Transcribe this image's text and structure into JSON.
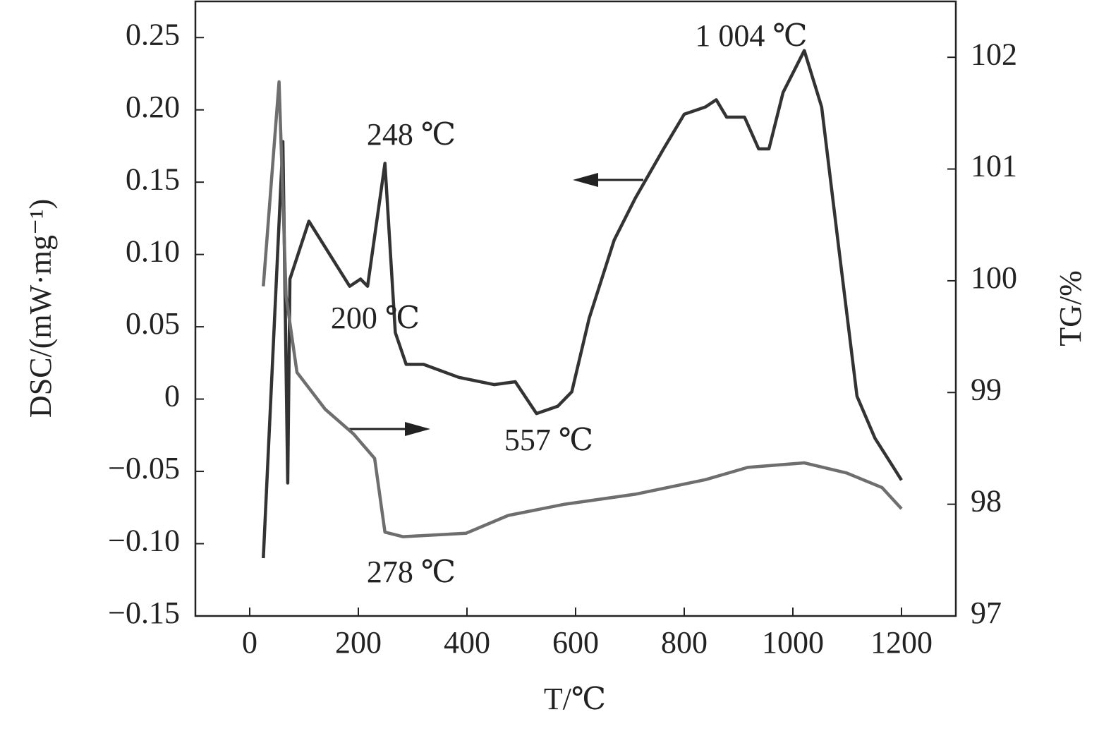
{
  "chart_data": {
    "type": "line",
    "xlabel": "T/℃",
    "ylabel": "DSC/(mW·mg⁻¹)",
    "y2label": "TG/%",
    "annotations": [
      "1 004 ℃",
      "248 ℃",
      "200 ℃",
      "557 ℃",
      "278 ℃"
    ],
    "xlim": [
      -100,
      1300
    ],
    "xticks": [
      0,
      200,
      400,
      600,
      800,
      1000,
      1200
    ],
    "ylim": [
      -0.15,
      0.275
    ],
    "yticks": [
      {
        "value": -0.15,
        "label": "−0.15"
      },
      {
        "value": -0.1,
        "label": "−0.10"
      },
      {
        "value": -0.05,
        "label": "−0.05"
      },
      0,
      0.05,
      {
        "value": 0.1,
        "label": "0.10"
      },
      0.15,
      {
        "value": 0.2,
        "label": "0.20"
      },
      0.25
    ],
    "y2lim": [
      97,
      102.5
    ],
    "y2ticks": [
      97,
      98,
      99,
      100,
      101,
      102
    ],
    "series": [
      {
        "name": "DSC",
        "color": "#333333",
        "x": [
          25,
          61,
          70,
          74,
          109,
          184,
          204,
          217,
          249,
          268,
          288,
          320,
          385,
          450,
          489,
          528,
          567,
          593,
          625,
          671,
          710,
          762,
          800,
          839,
          859,
          878,
          911,
          937,
          956,
          982,
          1021,
          1053,
          1086,
          1118,
          1151,
          1200
        ],
        "values": [
          -0.11,
          0.178,
          -0.058,
          0.083,
          0.123,
          0.078,
          0.083,
          0.078,
          0.163,
          0.046,
          0.024,
          0.024,
          0.015,
          0.01,
          0.012,
          -0.01,
          -0.005,
          0.005,
          0.056,
          0.11,
          0.139,
          0.173,
          0.197,
          0.202,
          0.207,
          0.195,
          0.195,
          0.173,
          0.173,
          0.212,
          0.241,
          0.202,
          0.1,
          0.002,
          -0.027,
          -0.056
        ]
      },
      {
        "name": "TG",
        "color": "#6e6e6e",
        "axis": "y2",
        "x": [
          25,
          54,
          67,
          87,
          139,
          191,
          230,
          249,
          282,
          398,
          476,
          580,
          710,
          839,
          917,
          1021,
          1099,
          1164,
          1200
        ],
        "values": [
          99.95,
          101.78,
          99.86,
          99.18,
          98.85,
          98.63,
          98.41,
          97.75,
          97.71,
          97.74,
          97.9,
          98.0,
          98.09,
          98.22,
          98.33,
          98.37,
          98.28,
          98.15,
          97.96
        ]
      }
    ]
  }
}
